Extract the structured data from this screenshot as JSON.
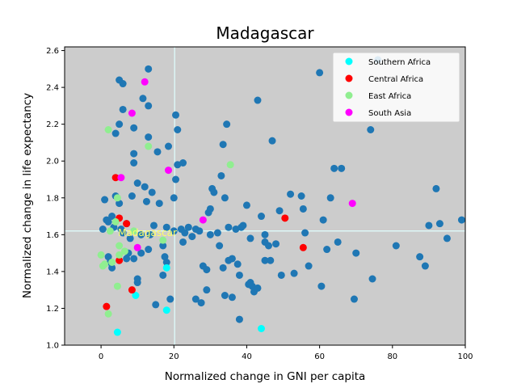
{
  "chart_data": {
    "type": "scatter",
    "title": "Madagascar",
    "xlabel": "Normalized change in GNI per capita",
    "ylabel": "Normalized change in life expectancy",
    "xlim": [
      -10,
      100
    ],
    "ylim": [
      1.0,
      2.62
    ],
    "xticks": [
      0,
      20,
      40,
      60,
      80,
      100
    ],
    "yticks": [
      1.0,
      1.2,
      1.4,
      1.6,
      1.8,
      2.0,
      2.2,
      2.4,
      2.6
    ],
    "grid": false,
    "background_color": "#cccccc",
    "legend_position": "top-right",
    "reference_lines": {
      "x": 20.2,
      "y": 1.62,
      "color": "#e0ffff"
    },
    "annotation": {
      "text": "Madagascar",
      "x": 20.2,
      "y": 1.62,
      "color": "#ffff66"
    },
    "series": [
      {
        "color": "#1f77b4",
        "points": [
          [
            0.5,
            1.63
          ],
          [
            1,
            1.79
          ],
          [
            1.5,
            1.68
          ],
          [
            2,
            1.67
          ],
          [
            2,
            1.48
          ],
          [
            2.5,
            1.45
          ],
          [
            3,
            1.42
          ],
          [
            3,
            1.7
          ],
          [
            3.5,
            1.64
          ],
          [
            4,
            1.81
          ],
          [
            4,
            2.15
          ],
          [
            5,
            2.2
          ],
          [
            5,
            2.44
          ],
          [
            5,
            1.77
          ],
          [
            5.5,
            1.63
          ],
          [
            6,
            1.61
          ],
          [
            6,
            2.42
          ],
          [
            6,
            2.28
          ],
          [
            7,
            1.47
          ],
          [
            7,
            1.66
          ],
          [
            7.5,
            1.5
          ],
          [
            8,
            1.58
          ],
          [
            8.5,
            1.81
          ],
          [
            9,
            2.18
          ],
          [
            9,
            1.99
          ],
          [
            9,
            2.04
          ],
          [
            9,
            1.47
          ],
          [
            10,
            1.88
          ],
          [
            10,
            1.34
          ],
          [
            10,
            1.36
          ],
          [
            11,
            1.6
          ],
          [
            11,
            1.5
          ],
          [
            11.5,
            2.34
          ],
          [
            12,
            1.86
          ],
          [
            12.5,
            1.78
          ],
          [
            13,
            2.3
          ],
          [
            13,
            2.13
          ],
          [
            13,
            2.5
          ],
          [
            13,
            1.52
          ],
          [
            13.5,
            1.6
          ],
          [
            14,
            1.83
          ],
          [
            14.5,
            1.65
          ],
          [
            15,
            1.22
          ],
          [
            15.5,
            2.05
          ],
          [
            16,
            1.77
          ],
          [
            17,
            1.54
          ],
          [
            17,
            1.38
          ],
          [
            17.5,
            1.48
          ],
          [
            18,
            1.45
          ],
          [
            18,
            1.64
          ],
          [
            18.5,
            2.08
          ],
          [
            19,
            1.25
          ],
          [
            20,
            1.8
          ],
          [
            20,
            1.62
          ],
          [
            20.5,
            1.9
          ],
          [
            20.5,
            2.25
          ],
          [
            21,
            2.17
          ],
          [
            21,
            1.98
          ],
          [
            22,
            1.63
          ],
          [
            22.5,
            1.56
          ],
          [
            22.5,
            1.99
          ],
          [
            23,
            1.61
          ],
          [
            24,
            1.64
          ],
          [
            25,
            1.59
          ],
          [
            26,
            1.63
          ],
          [
            26,
            1.25
          ],
          [
            27,
            1.62
          ],
          [
            27.5,
            1.23
          ],
          [
            28,
            1.43
          ],
          [
            29,
            1.41
          ],
          [
            29,
            1.3
          ],
          [
            29.5,
            1.72
          ],
          [
            30,
            1.74
          ],
          [
            30,
            1.6
          ],
          [
            30.5,
            1.85
          ],
          [
            31,
            1.83
          ],
          [
            32,
            1.61
          ],
          [
            32.5,
            1.54
          ],
          [
            33,
            1.92
          ],
          [
            33.5,
            2.09
          ],
          [
            33.5,
            1.42
          ],
          [
            34,
            1.27
          ],
          [
            34,
            1.8
          ],
          [
            34.5,
            2.2
          ],
          [
            35,
            1.64
          ],
          [
            35,
            1.46
          ],
          [
            36,
            1.26
          ],
          [
            36,
            1.47
          ],
          [
            37,
            1.63
          ],
          [
            37.5,
            1.44
          ],
          [
            38,
            1.14
          ],
          [
            38,
            1.38
          ],
          [
            38.5,
            1.64
          ],
          [
            39,
            1.65
          ],
          [
            40,
            1.76
          ],
          [
            40.5,
            1.33
          ],
          [
            41,
            1.34
          ],
          [
            41,
            1.58
          ],
          [
            41.5,
            1.32
          ],
          [
            42,
            1.29
          ],
          [
            43,
            1.31
          ],
          [
            43,
            2.33
          ],
          [
            44,
            1.7
          ],
          [
            45,
            1.56
          ],
          [
            45,
            1.6
          ],
          [
            45,
            1.46
          ],
          [
            46,
            1.54
          ],
          [
            46.5,
            1.46
          ],
          [
            47,
            2.11
          ],
          [
            48,
            1.55
          ],
          [
            49,
            1.73
          ],
          [
            49.5,
            1.38
          ],
          [
            52,
            1.82
          ],
          [
            53,
            1.39
          ],
          [
            55,
            1.81
          ],
          [
            55.5,
            1.74
          ],
          [
            56,
            1.61
          ],
          [
            57,
            1.43
          ],
          [
            60,
            2.48
          ],
          [
            60.5,
            1.32
          ],
          [
            61,
            1.68
          ],
          [
            62,
            1.52
          ],
          [
            63,
            1.8
          ],
          [
            64,
            1.96
          ],
          [
            65,
            1.56
          ],
          [
            66,
            1.96
          ],
          [
            69.5,
            1.25
          ],
          [
            70,
            1.5
          ],
          [
            74,
            2.17
          ],
          [
            74.5,
            1.36
          ],
          [
            76,
            2.55
          ],
          [
            81,
            1.54
          ],
          [
            87.5,
            1.48
          ],
          [
            89,
            1.43
          ],
          [
            90,
            1.65
          ],
          [
            92,
            1.85
          ],
          [
            93,
            1.66
          ],
          [
            95,
            1.58
          ],
          [
            99,
            1.68
          ]
        ]
      },
      {
        "name": "Southern Africa",
        "color": "#00ffff",
        "points": [
          [
            4.5,
            1.07
          ],
          [
            9.5,
            1.27
          ],
          [
            18,
            1.19
          ],
          [
            18,
            1.42
          ],
          [
            44,
            1.09
          ]
        ]
      },
      {
        "name": "Central Africa",
        "color": "#ff0000",
        "points": [
          [
            1.5,
            1.21
          ],
          [
            4,
            1.91
          ],
          [
            5,
            1.69
          ],
          [
            5,
            1.46
          ],
          [
            7,
            1.66
          ],
          [
            8.5,
            1.3
          ],
          [
            50.5,
            1.69
          ],
          [
            55.5,
            1.53
          ]
        ]
      },
      {
        "name": "East Africa",
        "color": "#90ee90",
        "points": [
          [
            0,
            1.49
          ],
          [
            0.5,
            1.43
          ],
          [
            1,
            1.44
          ],
          [
            2,
            2.17
          ],
          [
            2,
            1.17
          ],
          [
            2.5,
            1.62
          ],
          [
            3,
            1.45
          ],
          [
            4,
            1.67
          ],
          [
            4.5,
            1.8
          ],
          [
            4.5,
            1.32
          ],
          [
            5,
            1.54
          ],
          [
            5,
            1.49
          ],
          [
            6.5,
            1.51
          ],
          [
            9,
            1.62
          ],
          [
            13,
            2.08
          ],
          [
            17,
            1.57
          ],
          [
            35.5,
            1.98
          ]
        ]
      },
      {
        "name": "South Asia",
        "color": "#ff00ff",
        "points": [
          [
            5.5,
            1.91
          ],
          [
            8.5,
            2.26
          ],
          [
            10,
            1.53
          ],
          [
            12,
            2.43
          ],
          [
            18.5,
            1.95
          ],
          [
            28,
            1.68
          ],
          [
            69,
            1.77
          ]
        ]
      }
    ]
  }
}
